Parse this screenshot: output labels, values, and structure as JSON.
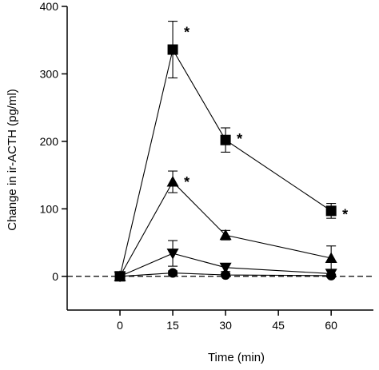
{
  "chart_data": {
    "type": "line",
    "xlabel": "Time (min)",
    "ylabel": "Change in ir-ACTH (pg/ml)",
    "xlim": [
      -15,
      72
    ],
    "ylim": [
      -50,
      400
    ],
    "xticks": [
      0,
      15,
      30,
      45,
      60
    ],
    "yticks": [
      0,
      100,
      200,
      300,
      400
    ],
    "reference_line": {
      "y": 0,
      "style": "dashed"
    },
    "grid": false,
    "legend": "none",
    "series": [
      {
        "marker": "square",
        "x": [
          0,
          15,
          30,
          60
        ],
        "y": [
          0,
          336,
          202,
          97
        ],
        "error": [
          0,
          42,
          18,
          11
        ],
        "significant": [
          false,
          true,
          true,
          true
        ]
      },
      {
        "marker": "triangle-up",
        "x": [
          0,
          15,
          30,
          60
        ],
        "y": [
          0,
          140,
          61,
          27
        ],
        "error": [
          0,
          16,
          7,
          18
        ],
        "significant": [
          false,
          true,
          false,
          false
        ]
      },
      {
        "marker": "triangle-down",
        "x": [
          0,
          15,
          30,
          60
        ],
        "y": [
          0,
          34,
          13,
          4
        ],
        "error": [
          0,
          19,
          6,
          5
        ],
        "significant": [
          false,
          false,
          false,
          false
        ]
      },
      {
        "marker": "circle",
        "x": [
          0,
          15,
          30,
          60
        ],
        "y": [
          0,
          5,
          2,
          1
        ],
        "error": [
          0,
          3,
          2,
          2
        ],
        "significant": [
          false,
          false,
          false,
          false
        ]
      }
    ],
    "significance_marker": "*",
    "colors": {
      "ink": "#000000",
      "background": "#ffffff"
    }
  }
}
